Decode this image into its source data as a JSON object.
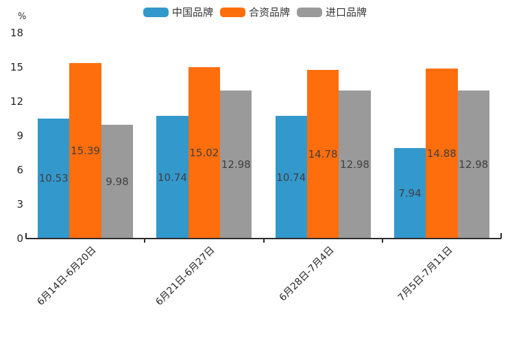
{
  "chart_data": {
    "type": "bar",
    "title": "",
    "ylabel": "%",
    "xlabel": "",
    "categories": [
      "6月14日-6月20日",
      "6月21日-6月27日",
      "6月28日-7月4日",
      "7月5日-7月11日"
    ],
    "series": [
      {
        "name": "中国品牌",
        "color": "#3398cc",
        "values": [
          10.53,
          10.74,
          10.74,
          7.94
        ]
      },
      {
        "name": "合资品牌",
        "color": "#ff6e0c",
        "values": [
          15.39,
          15.02,
          14.78,
          14.88
        ]
      },
      {
        "name": "进口品牌",
        "color": "#9a9a9a",
        "values": [
          9.98,
          12.98,
          12.98,
          12.98
        ]
      }
    ],
    "value_labels": [
      "10.53",
      "10.74",
      "10.74",
      "7.94",
      "15.39",
      "15.02",
      "14.78",
      "14.88",
      "9.98",
      "12.98",
      "12.98",
      "12.98"
    ],
    "ylim": [
      0,
      18
    ],
    "yticks": [
      "0",
      "3",
      "6",
      "9",
      "12",
      "15",
      "18"
    ],
    "grid": false,
    "legend_position": "top",
    "axis_color": "#2b2b2b",
    "value_label_color": "#3f3f3f",
    "value_label_position": "inside-center",
    "xtick_rotation_deg": 45
  }
}
